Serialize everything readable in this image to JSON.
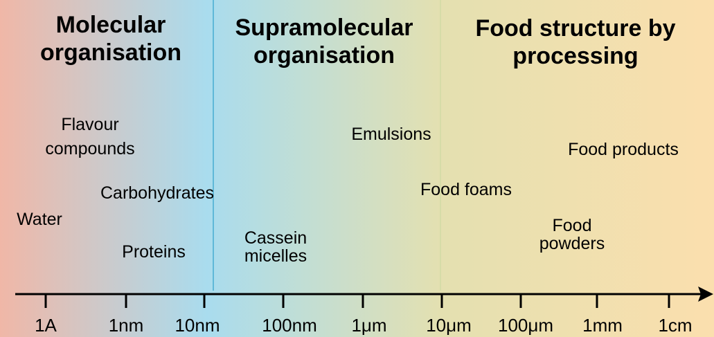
{
  "colors": {
    "left_region": "#f0b7a7",
    "mid_region": "#a9dcee",
    "right_region": "#fbdfae",
    "divider": "#5fb8d8",
    "axis": "#000000"
  },
  "headings": {
    "molecular": "Molecular\norganisation",
    "supramolecular": "Supramolecular\norganisation",
    "processing": "Food structure by\nprocessing"
  },
  "items": {
    "flavour": "Flavour\ncompounds",
    "carbohydrates": "Carbohydrates",
    "water": "Water",
    "proteins": "Proteins",
    "cassein": "Cassein\nmicelles",
    "emulsions": "Emulsions",
    "food_foams": "Food foams",
    "food_products": "Food products",
    "food_powders": "Food\npowders"
  },
  "axis": {
    "ticks": [
      "1A",
      "1nm",
      "10nm",
      "100nm",
      "1μm",
      "10μm",
      "100μm",
      "1mm",
      "1cm"
    ]
  }
}
